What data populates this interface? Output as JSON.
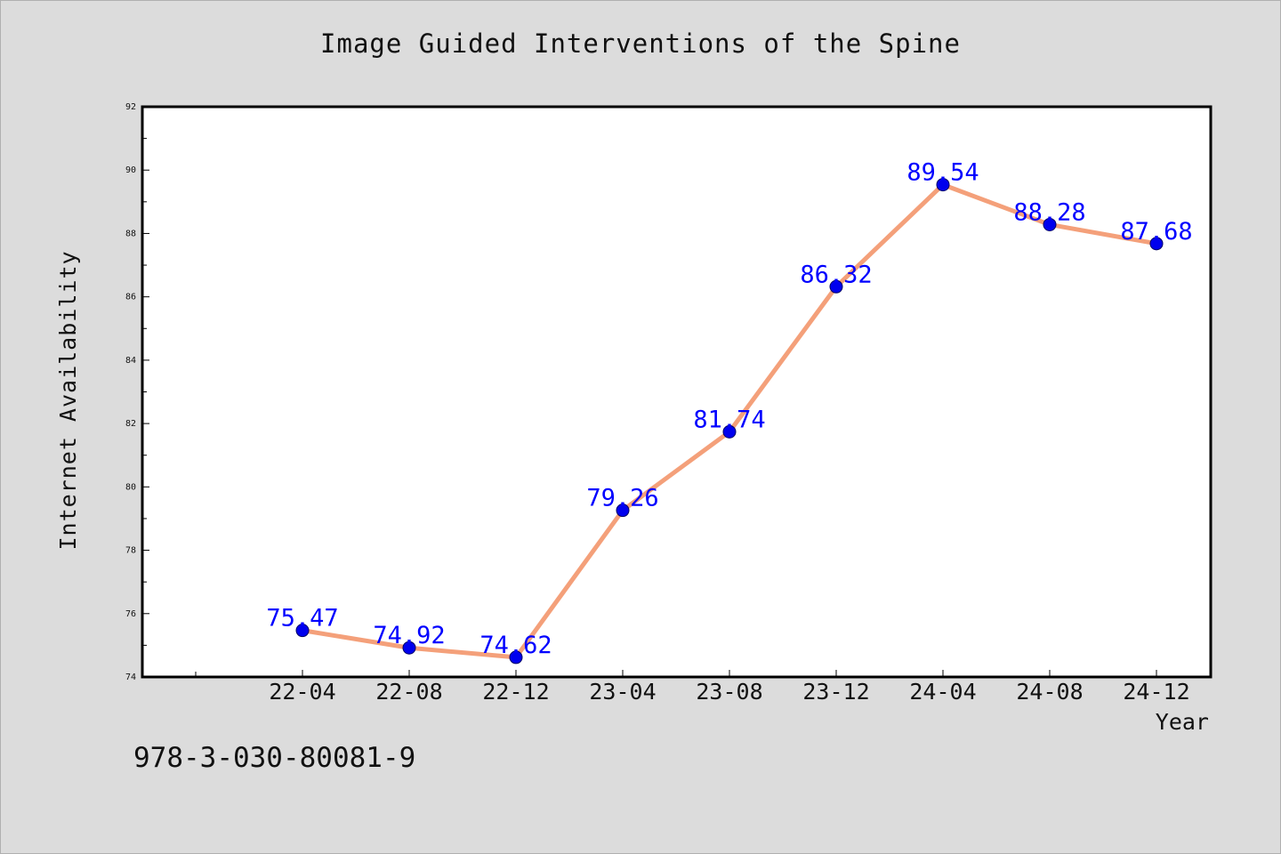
{
  "chart_data": {
    "type": "line",
    "title": "Image Guided Interventions of the Spine",
    "xlabel": "Year",
    "ylabel": "Internet Availability",
    "categories": [
      "22-04",
      "22-08",
      "22-12",
      "23-04",
      "23-08",
      "23-12",
      "24-04",
      "24-08",
      "24-12"
    ],
    "series": [
      {
        "values": [
          75.47,
          74.92,
          74.62,
          79.26,
          81.74,
          86.32,
          89.54,
          88.28,
          87.68
        ]
      }
    ],
    "ylim": [
      74,
      92
    ],
    "yticks": [
      "74",
      "76",
      "78",
      "80",
      "82",
      "84",
      "86",
      "88",
      "90",
      "92"
    ],
    "data_labels": [
      "75.47",
      "74.92",
      "74.62",
      "79.26",
      "81.74",
      "86.32",
      "89.54",
      "88.28",
      "87.68"
    ],
    "grid": false,
    "legend": "none",
    "colors": {
      "line": "#f4a07a",
      "marker": "#0000ee",
      "label": "#0000ff",
      "background": "#dcdcdc",
      "plot": "#ffffff"
    }
  },
  "footer": {
    "text": "978-3-030-80081-9"
  }
}
